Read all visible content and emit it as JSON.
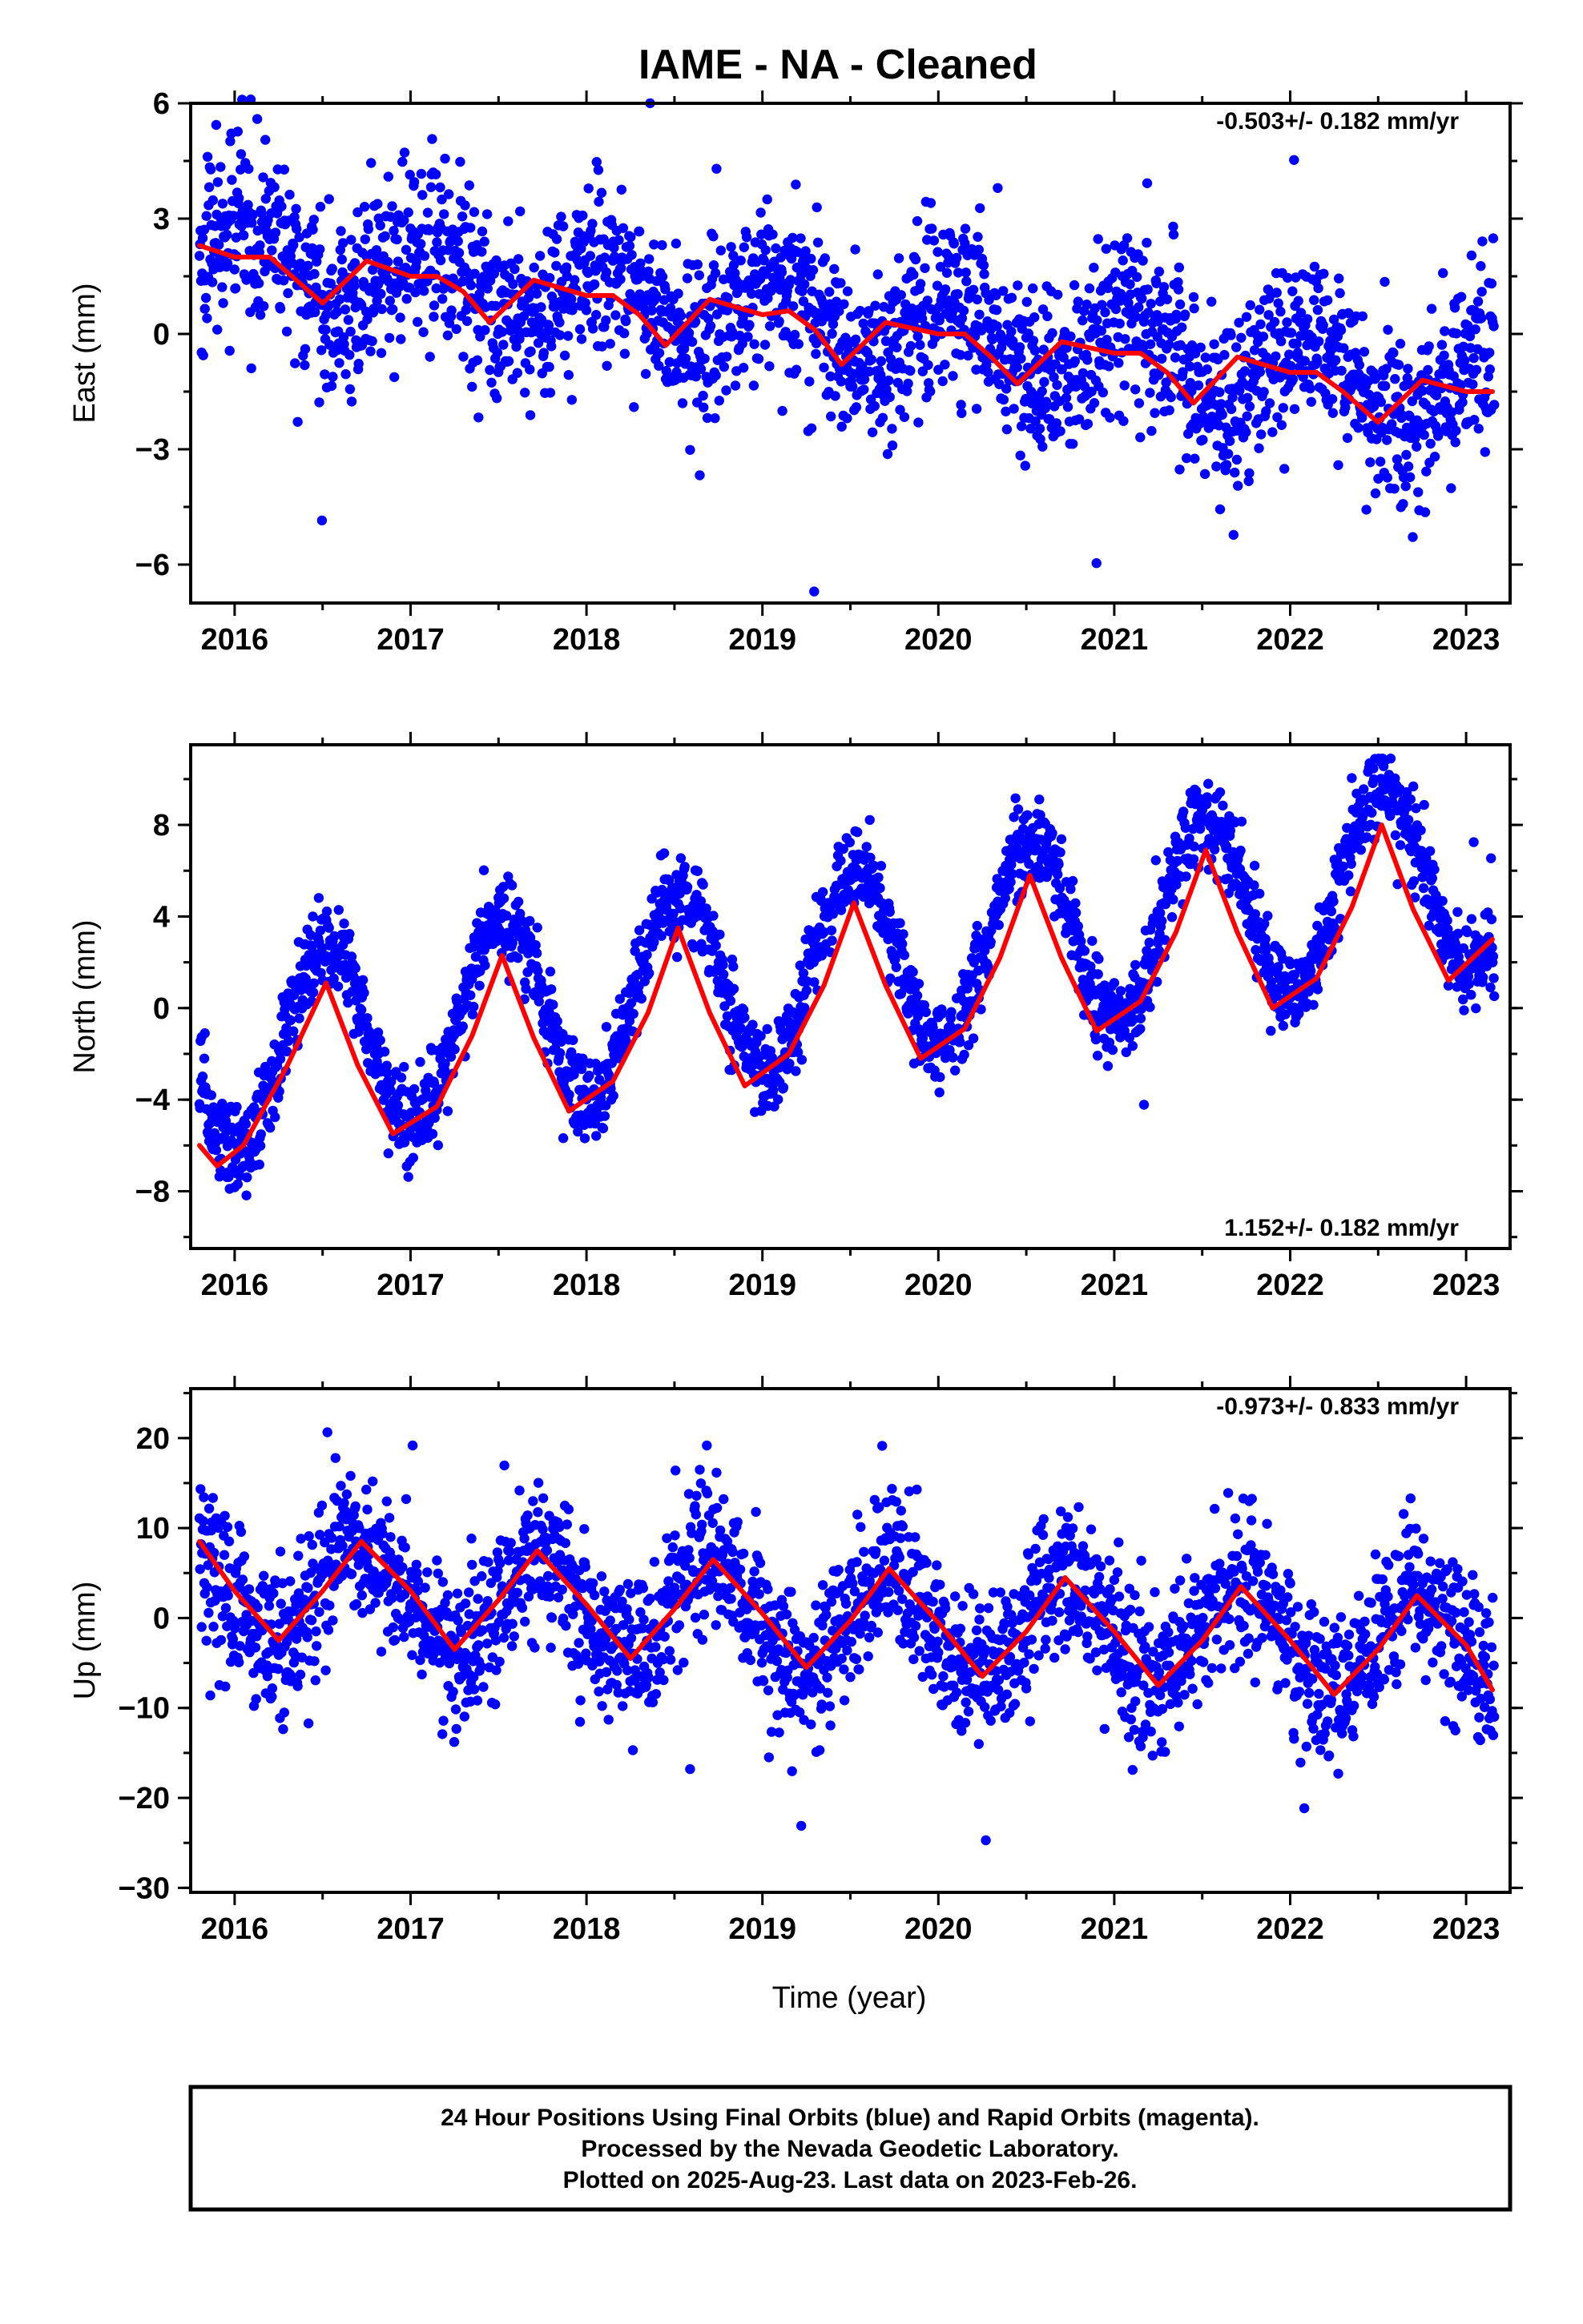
{
  "title": "IAME  - NA - Cleaned",
  "colors": {
    "final_orbits": "#0000ff",
    "model": "#ff0000",
    "frame": "#000000"
  },
  "chart_data": [
    {
      "type": "scatter",
      "component": "east",
      "ylabel": "East (mm)",
      "xlim": [
        2015.75,
        2023.25
      ],
      "ylim": [
        -7,
        6
      ],
      "yticks": [
        -6,
        -3,
        0,
        3,
        6
      ],
      "ytick_labels": [
        "−6",
        "−3",
        "0",
        "3",
        "6"
      ],
      "xticks": [
        2016,
        2017,
        2018,
        2019,
        2020,
        2021,
        2022,
        2023
      ],
      "xtick_labels": [
        "2016",
        "2017",
        "2018",
        "2019",
        "2020",
        "2021",
        "2022",
        "2023"
      ],
      "rate_label": "-0.503+/- 0.182 mm/yr",
      "rate_position": "top-right",
      "model": {
        "x": [
          2015.8,
          2016.0,
          2016.2,
          2016.35,
          2016.5,
          2016.75,
          2017.0,
          2017.15,
          2017.3,
          2017.45,
          2017.7,
          2018.0,
          2018.15,
          2018.3,
          2018.45,
          2018.7,
          2019.0,
          2019.15,
          2019.3,
          2019.45,
          2019.7,
          2020.0,
          2020.15,
          2020.3,
          2020.45,
          2020.7,
          2021.0,
          2021.15,
          2021.3,
          2021.45,
          2021.7,
          2022.0,
          2022.15,
          2022.3,
          2022.5,
          2022.75,
          2023.0,
          2023.15
        ],
        "y": [
          2.3,
          2.0,
          2.0,
          1.4,
          0.8,
          1.9,
          1.5,
          1.5,
          1.1,
          0.3,
          1.4,
          1.0,
          1.0,
          0.5,
          -0.3,
          0.9,
          0.5,
          0.6,
          0.1,
          -0.8,
          0.3,
          0.0,
          0.0,
          -0.6,
          -1.3,
          -0.2,
          -0.5,
          -0.5,
          -1.0,
          -1.8,
          -0.6,
          -1.0,
          -1.0,
          -1.5,
          -2.3,
          -1.2,
          -1.5,
          -1.5
        ]
      },
      "scatter": {
        "trend_start": 2.1,
        "trend_end": -1.5,
        "annual_amp": 1.0,
        "phase": 0.1,
        "noise": 1.1,
        "outlier_min": -6.7,
        "outlier_max": 6.1
      }
    },
    {
      "type": "scatter",
      "component": "north",
      "ylabel": "North (mm)",
      "xlim": [
        2015.75,
        2023.25
      ],
      "ylim": [
        -10.5,
        11.5
      ],
      "yticks": [
        -8,
        -4,
        0,
        4,
        8
      ],
      "ytick_labels": [
        "−8",
        "−4",
        "0",
        "4",
        "8"
      ],
      "xticks": [
        2016,
        2017,
        2018,
        2019,
        2020,
        2021,
        2022,
        2023
      ],
      "xtick_labels": [
        "2016",
        "2017",
        "2018",
        "2019",
        "2020",
        "2021",
        "2022",
        "2023"
      ],
      "rate_label": "1.152+/- 0.182 mm/yr",
      "rate_position": "bottom-right",
      "model": {
        "x": [
          2015.8,
          2015.9,
          2016.05,
          2016.3,
          2016.52,
          2016.7,
          2016.9,
          2017.15,
          2017.35,
          2017.52,
          2017.7,
          2017.9,
          2018.15,
          2018.35,
          2018.52,
          2018.7,
          2018.9,
          2019.15,
          2019.35,
          2019.52,
          2019.7,
          2019.9,
          2020.15,
          2020.35,
          2020.52,
          2020.7,
          2020.9,
          2021.15,
          2021.35,
          2021.52,
          2021.7,
          2021.9,
          2022.15,
          2022.35,
          2022.52,
          2022.7,
          2022.9,
          2023.15
        ],
        "y": [
          -6.0,
          -6.9,
          -6.0,
          -2.5,
          1.1,
          -2.5,
          -5.5,
          -4.3,
          -1.2,
          2.3,
          -1.3,
          -4.5,
          -3.2,
          -0.2,
          3.5,
          -0.2,
          -3.4,
          -2.0,
          1.0,
          4.6,
          1.0,
          -2.2,
          -0.9,
          2.2,
          5.8,
          2.2,
          -1.0,
          0.3,
          3.3,
          6.9,
          3.3,
          0.0,
          1.3,
          4.4,
          8.0,
          4.3,
          1.2,
          3.0
        ]
      },
      "scatter": {
        "trend_start": -2.3,
        "trend_end": 6.1,
        "annual_amp": 4.2,
        "phase": 0.52,
        "noise": 0.95,
        "outlier_min": -10.2,
        "outlier_max": 10.9
      }
    },
    {
      "type": "scatter",
      "component": "up",
      "ylabel": "Up (mm)",
      "xlim": [
        2015.75,
        2023.25
      ],
      "ylim": [
        -30.5,
        25.5
      ],
      "yticks": [
        -30,
        -20,
        -10,
        0,
        10,
        20
      ],
      "ytick_labels": [
        "−30",
        "−20",
        "−10",
        "0",
        "10",
        "20"
      ],
      "xticks": [
        2016,
        2017,
        2018,
        2019,
        2020,
        2021,
        2022,
        2023
      ],
      "xtick_labels": [
        "2016",
        "2017",
        "2018",
        "2019",
        "2020",
        "2021",
        "2022",
        "2023"
      ],
      "xlabel": "Time (year)",
      "rate_label": "-0.973+/- 0.833 mm/yr",
      "rate_position": "top-right",
      "model": {
        "x": [
          2015.8,
          2016.0,
          2016.25,
          2016.5,
          2016.72,
          2017.0,
          2017.25,
          2017.5,
          2017.72,
          2018.0,
          2018.25,
          2018.5,
          2018.72,
          2019.0,
          2019.25,
          2019.5,
          2019.72,
          2020.0,
          2020.25,
          2020.5,
          2020.72,
          2021.0,
          2021.25,
          2021.5,
          2021.72,
          2022.0,
          2022.25,
          2022.5,
          2022.72,
          2023.0,
          2023.15
        ],
        "y": [
          8.5,
          3.0,
          -2.5,
          3.0,
          8.5,
          3.0,
          -3.5,
          2.0,
          7.5,
          1.5,
          -4.5,
          1.0,
          6.5,
          0.5,
          -5.5,
          -0.3,
          5.5,
          -0.5,
          -6.5,
          -1.5,
          4.5,
          -1.5,
          -7.5,
          -2.5,
          3.5,
          -2.5,
          -8.5,
          -3.5,
          2.5,
          -3.0,
          -8.0
        ]
      },
      "scatter": {
        "trend_start": 2.8,
        "trend_end": -3.0,
        "annual_amp": 5.6,
        "phase": 0.72,
        "noise": 4.2,
        "outlier_min": -29.5,
        "outlier_max": 24.2
      }
    }
  ],
  "footer": {
    "line1": "24 Hour Positions Using Final Orbits (blue) and Rapid Orbits (magenta).",
    "line2": "Processed by the Nevada Geodetic Laboratory.",
    "line3": "Plotted on 2025-Aug-23. Last data on 2023-Feb-26."
  }
}
